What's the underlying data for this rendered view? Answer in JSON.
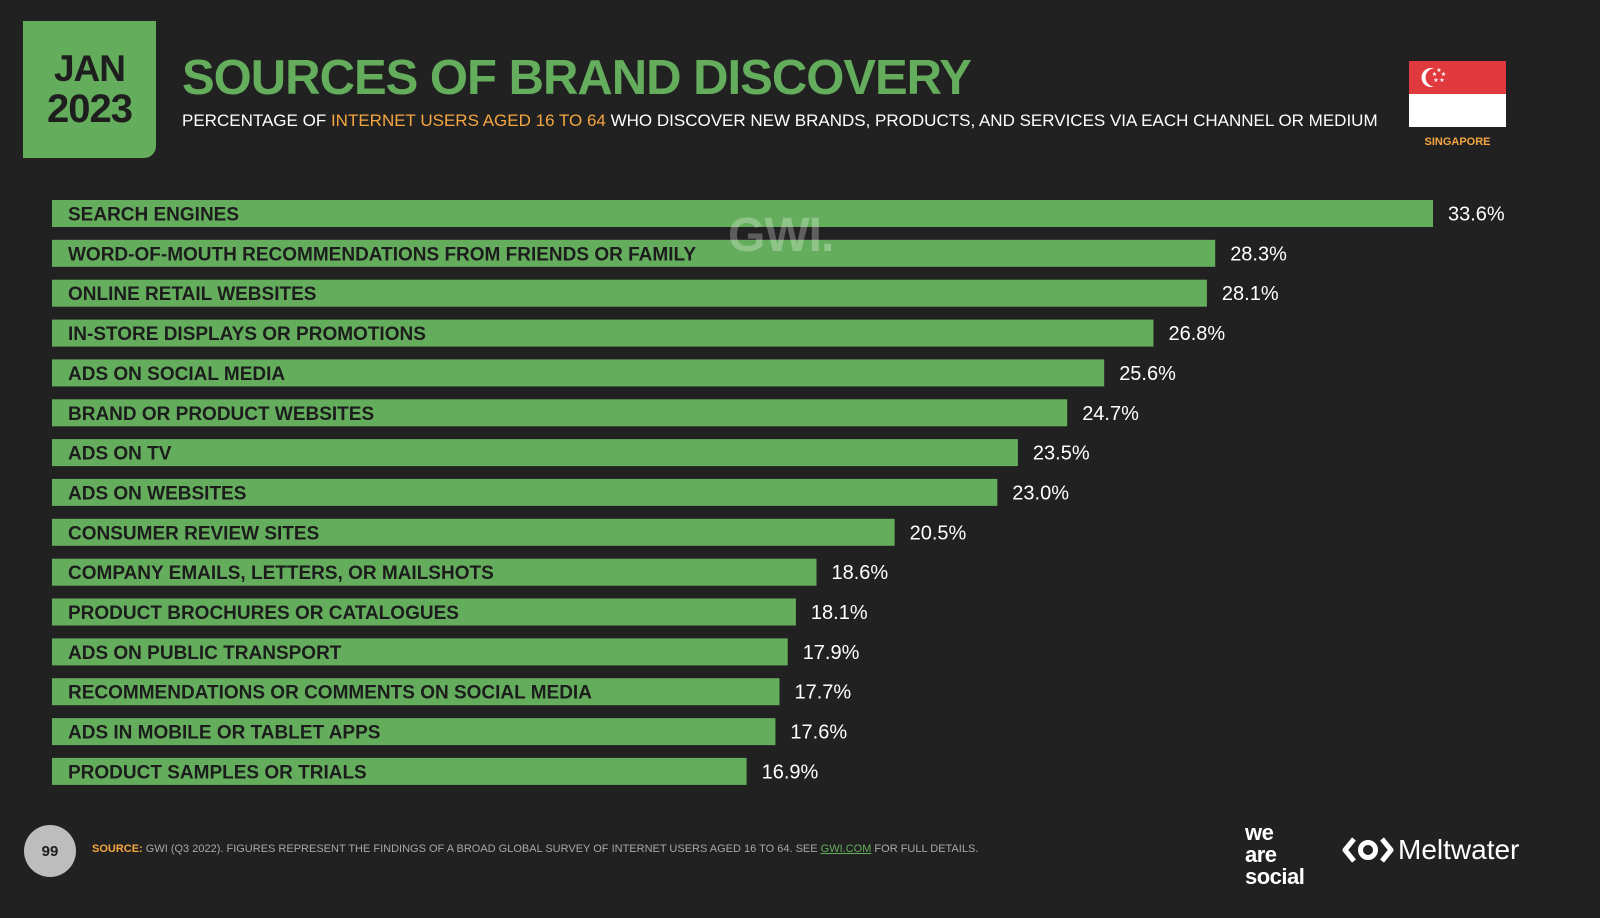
{
  "header": {
    "month": "JAN",
    "year": "2023",
    "title": "SOURCES OF BRAND DISCOVERY",
    "subtitle_pre": "PERCENTAGE OF ",
    "subtitle_highlight": "INTERNET USERS AGED 16 TO 64",
    "subtitle_post": " WHO DISCOVER NEW BRANDS, PRODUCTS, AND SERVICES VIA EACH CHANNEL OR MEDIUM",
    "country": "SINGAPORE"
  },
  "watermark": "GWI.",
  "footer": {
    "page_number": "99",
    "source_label": "SOURCE:",
    "source_text": " GWI (Q3 2022). FIGURES REPRESENT THE FINDINGS OF A BROAD GLOBAL SURVEY OF INTERNET USERS AGED 16 TO 64. SEE ",
    "source_link": "GWI.COM",
    "source_tail": " FOR FULL DETAILS.",
    "brand1_line1": "we",
    "brand1_line2": "are",
    "brand1_line3": "social",
    "brand2": "Meltwater"
  },
  "colors": {
    "background": "#212121",
    "accent_green": "#64ad5c",
    "accent_orange": "#f5a641",
    "flag_red": "#e03a3e"
  },
  "chart_data": {
    "type": "bar",
    "orientation": "horizontal",
    "title": "SOURCES OF BRAND DISCOVERY",
    "xlabel": "",
    "ylabel": "",
    "xlim": [
      0,
      33.6
    ],
    "grid": false,
    "legend": "none",
    "value_suffix": "%",
    "categories": [
      "SEARCH ENGINES",
      "WORD-OF-MOUTH RECOMMENDATIONS FROM FRIENDS OR FAMILY",
      "ONLINE RETAIL WEBSITES",
      "IN-STORE DISPLAYS OR PROMOTIONS",
      "ADS ON SOCIAL MEDIA",
      "BRAND OR PRODUCT WEBSITES",
      "ADS ON TV",
      "ADS ON WEBSITES",
      "CONSUMER REVIEW SITES",
      "COMPANY EMAILS, LETTERS, OR MAILSHOTS",
      "PRODUCT BROCHURES OR CATALOGUES",
      "ADS ON PUBLIC TRANSPORT",
      "RECOMMENDATIONS OR COMMENTS ON SOCIAL MEDIA",
      "ADS IN MOBILE OR TABLET APPS",
      "PRODUCT SAMPLES OR TRIALS"
    ],
    "values": [
      33.6,
      28.3,
      28.1,
      26.8,
      25.6,
      24.7,
      23.5,
      23.0,
      20.5,
      18.6,
      18.1,
      17.9,
      17.7,
      17.6,
      16.9
    ],
    "labels": [
      "33.6%",
      "28.3%",
      "28.1%",
      "26.8%",
      "25.6%",
      "24.7%",
      "23.5%",
      "23.0%",
      "20.5%",
      "18.6%",
      "18.1%",
      "17.9%",
      "17.7%",
      "17.6%",
      "16.9%"
    ]
  }
}
